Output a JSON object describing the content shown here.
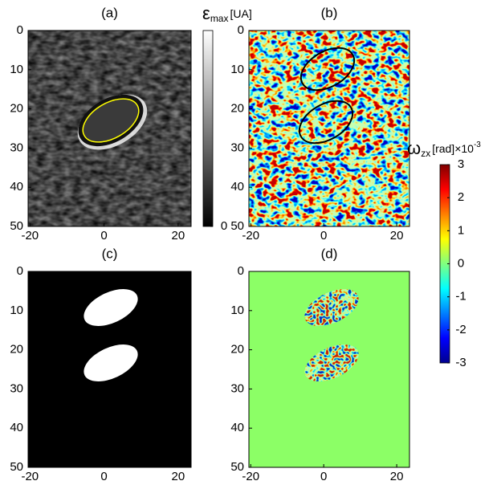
{
  "chart_data": [
    {
      "type": "image",
      "title": "(a)",
      "xlim": [
        -20.5,
        23.5
      ],
      "ylim": [
        0,
        50
      ],
      "xticks": [
        -20,
        0,
        20
      ],
      "yticks": [
        0,
        10,
        20,
        30,
        40,
        50
      ],
      "colorbar": {
        "symbol": "ε",
        "subscript": "max",
        "unit": "[UA]",
        "clim": [
          0,
          1
        ],
        "cticks": [
          0
        ]
      }
    },
    {
      "type": "image",
      "title": "(b)",
      "xlim": [
        -20.5,
        23.5
      ],
      "ylim": [
        0,
        50
      ],
      "xticks": [
        -20,
        0,
        20
      ],
      "yticks": [
        0,
        10,
        20,
        30,
        40,
        50
      ],
      "colorbar": {
        "symbol": "ω",
        "subscript": "zx",
        "unit": "[rad]×10",
        "superscript": "-3",
        "clim": [
          -3,
          3
        ],
        "cticks": [
          -3,
          -2,
          -1,
          0,
          1,
          2,
          3
        ]
      }
    },
    {
      "type": "image",
      "title": "(c)",
      "xlim": [
        -20.5,
        23.5
      ],
      "ylim": [
        0,
        50
      ],
      "xticks": [
        -20,
        0,
        20
      ],
      "yticks": [
        0,
        10,
        20,
        30,
        40,
        50
      ]
    },
    {
      "type": "image",
      "title": "(d)",
      "xlim": [
        -20.5,
        23.5
      ],
      "ylim": [
        0,
        50
      ],
      "xticks": [
        -20,
        0,
        20
      ],
      "yticks": [
        0,
        10,
        20,
        30,
        40,
        50
      ]
    }
  ]
}
